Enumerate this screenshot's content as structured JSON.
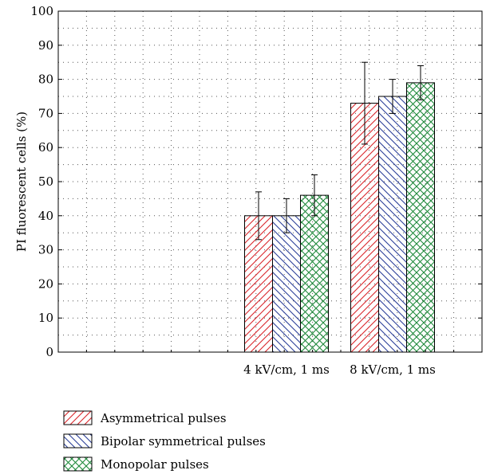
{
  "chart_data": {
    "type": "bar",
    "categories": [
      "4 kV/cm, 1 ms",
      "8 kV/cm, 1 ms"
    ],
    "series": [
      {
        "name": "Asymmetrical pulses",
        "values": [
          40,
          73
        ],
        "errors": [
          7,
          12
        ],
        "color": "#d9262b",
        "pattern": "forward-diagonal"
      },
      {
        "name": "Bipolar symmetrical pulses",
        "values": [
          40,
          75
        ],
        "errors": [
          5,
          5
        ],
        "color": "#2b3f99",
        "pattern": "backward-diagonal"
      },
      {
        "name": "Monopolar pulses",
        "values": [
          46,
          79
        ],
        "errors": [
          6,
          5
        ],
        "color": "#1f8a3b",
        "pattern": "crosshatch"
      }
    ],
    "ylabel": "PI fluorescent cells (%)",
    "ylim": [
      0,
      100
    ],
    "yticks": [
      0,
      10,
      20,
      30,
      40,
      50,
      60,
      70,
      80,
      90,
      100
    ],
    "grid": true,
    "legend_position": "bottom-left"
  }
}
